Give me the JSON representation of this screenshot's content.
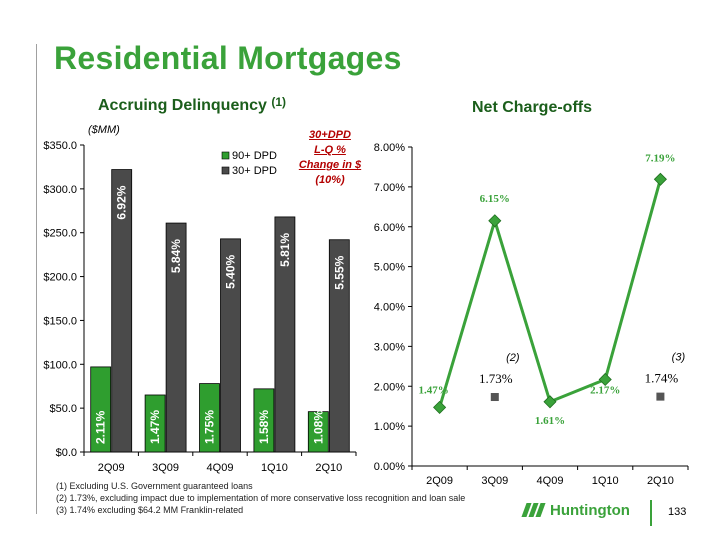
{
  "slide": {
    "title": "Residential Mortgages",
    "page_number": "133",
    "logo_text": "Huntington",
    "left_subtitle": "Accruing Delinquency",
    "left_subtitle_note": "(1)",
    "right_subtitle": "Net Charge-offs",
    "units_label": "($MM)",
    "callout_line1": "30+DPD",
    "callout_line2": "L-Q %",
    "callout_line3": "Change in $",
    "callout_line4": "(10%)"
  },
  "footnotes": [
    "(1)  Excluding U.S. Government guaranteed loans",
    "(2)  1.73%, excluding impact due to implementation of more conservative loss recognition and loan sale",
    "(3)  1.74% excluding $64.2 MM Franklin-related"
  ],
  "colors": {
    "title_green": "#3aa23a",
    "subtitle_green": "#1b5e1b",
    "bar_green": "#2f9e2f",
    "bar_dark": "#4a4a4a",
    "line_green": "#3aa23a",
    "marker_gray": "#555555",
    "callout_red": "#b30000"
  },
  "chart_data": [
    {
      "type": "bar",
      "title": "Accruing Delinquency",
      "ylabel": "($MM)",
      "categories": [
        "2Q09",
        "3Q09",
        "4Q09",
        "1Q10",
        "2Q10"
      ],
      "ylim": [
        0,
        350
      ],
      "yticks": [
        0,
        50,
        100,
        150,
        200,
        250,
        300,
        350
      ],
      "ytick_labels": [
        "$0.0",
        "$50.0",
        "$100.0",
        "$150.0",
        "$200.0",
        "$250.0",
        "$300.0",
        "$350.0"
      ],
      "legend_position": "top-right",
      "series": [
        {
          "name": "90+ DPD",
          "values": [
            97,
            65,
            78,
            72,
            46
          ],
          "labels": [
            "2.11%",
            "1.47%",
            "1.75%",
            "1.58%",
            "1.08%"
          ]
        },
        {
          "name": "30+ DPD",
          "values": [
            322,
            261,
            243,
            268,
            242
          ],
          "labels": [
            "6.92%",
            "5.84%",
            "5.40%",
            "5.81%",
            "5.55%"
          ]
        }
      ]
    },
    {
      "type": "line",
      "title": "Net Charge-offs",
      "categories": [
        "2Q09",
        "3Q09",
        "4Q09",
        "1Q10",
        "2Q10"
      ],
      "ylim": [
        0,
        8
      ],
      "yticks": [
        0,
        1,
        2,
        3,
        4,
        5,
        6,
        7,
        8
      ],
      "ytick_labels": [
        "0.00%",
        "1.00%",
        "2.00%",
        "3.00%",
        "4.00%",
        "5.00%",
        "6.00%",
        "7.00%",
        "8.00%"
      ],
      "series": [
        {
          "values": [
            1.47,
            6.15,
            1.61,
            2.17,
            7.19
          ],
          "labels": [
            "1.47%",
            "6.15%",
            "1.61%",
            "2.17%",
            "7.19%"
          ]
        }
      ],
      "adjusted_points": [
        {
          "category": "3Q09",
          "value": 1.73,
          "label": "1.73%",
          "note": "(2)"
        },
        {
          "category": "2Q10",
          "value": 1.74,
          "label": "1.74%",
          "note": "(3)"
        }
      ]
    }
  ]
}
